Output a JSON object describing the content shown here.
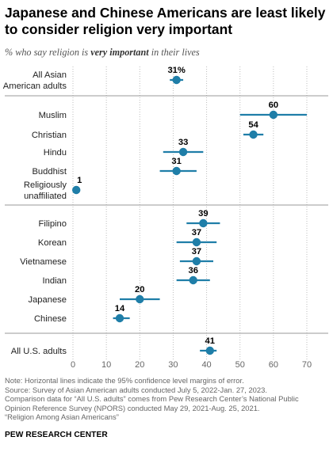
{
  "title": "Japanese and Chinese Americans are least likely to consider religion very important",
  "subtitle": {
    "before": "% who say religion is ",
    "emph": "very important",
    "after": " in their lives"
  },
  "chart_data": {
    "type": "scatter",
    "xlim": [
      0,
      70
    ],
    "x_ticks": [
      "0",
      "10",
      "20",
      "30",
      "40",
      "50",
      "60",
      "70"
    ],
    "accent_color": "#1f7ea8",
    "groups": [
      {
        "rows": [
          {
            "label": [
              "All Asian",
              "American adults"
            ],
            "value": 31,
            "value_label": "31%",
            "ci": [
              29,
              33
            ]
          }
        ]
      },
      {
        "rows": [
          {
            "label": [
              "Muslim"
            ],
            "value": 60,
            "value_label": "60",
            "ci": [
              50,
              70
            ]
          },
          {
            "label": [
              "Christian"
            ],
            "value": 54,
            "value_label": "54",
            "ci": [
              51,
              57
            ]
          },
          {
            "label": [
              "Hindu"
            ],
            "value": 33,
            "value_label": "33",
            "ci": [
              27,
              39
            ]
          },
          {
            "label": [
              "Buddhist"
            ],
            "value": 31,
            "value_label": "31",
            "ci": [
              26,
              37
            ]
          },
          {
            "label": [
              "Religiously",
              "unaffiliated"
            ],
            "value": 1,
            "value_label": "1",
            "ci": [
              0.5,
              1.5
            ]
          }
        ]
      },
      {
        "rows": [
          {
            "label": [
              "Filipino"
            ],
            "value": 39,
            "value_label": "39",
            "ci": [
              34,
              44
            ]
          },
          {
            "label": [
              "Korean"
            ],
            "value": 37,
            "value_label": "37",
            "ci": [
              31,
              43
            ]
          },
          {
            "label": [
              "Vietnamese"
            ],
            "value": 37,
            "value_label": "37",
            "ci": [
              32,
              42
            ]
          },
          {
            "label": [
              "Indian"
            ],
            "value": 36,
            "value_label": "36",
            "ci": [
              31,
              41
            ]
          },
          {
            "label": [
              "Japanese"
            ],
            "value": 20,
            "value_label": "20",
            "ci": [
              14,
              26
            ]
          },
          {
            "label": [
              "Chinese"
            ],
            "value": 14,
            "value_label": "14",
            "ci": [
              12,
              17
            ]
          }
        ]
      },
      {
        "rows": [
          {
            "label": [
              "All U.S. adults"
            ],
            "value": 41,
            "value_label": "41",
            "ci": [
              38,
              43
            ]
          }
        ]
      }
    ]
  },
  "footnotes": [
    "Note: Horizontal lines indicate the 95% confidence level margins of error.",
    "Source: Survey of Asian American adults conducted July 5, 2022-Jan. 27, 2023.",
    "Comparison data for “All U.S. adults” comes from Pew Research Center’s National Public",
    "Opinion Reference Survey (NPORS) conducted May 29, 2021-Aug. 25, 2021.",
    "“Religion Among Asian Americans”"
  ],
  "brand": "PEW RESEARCH CENTER"
}
